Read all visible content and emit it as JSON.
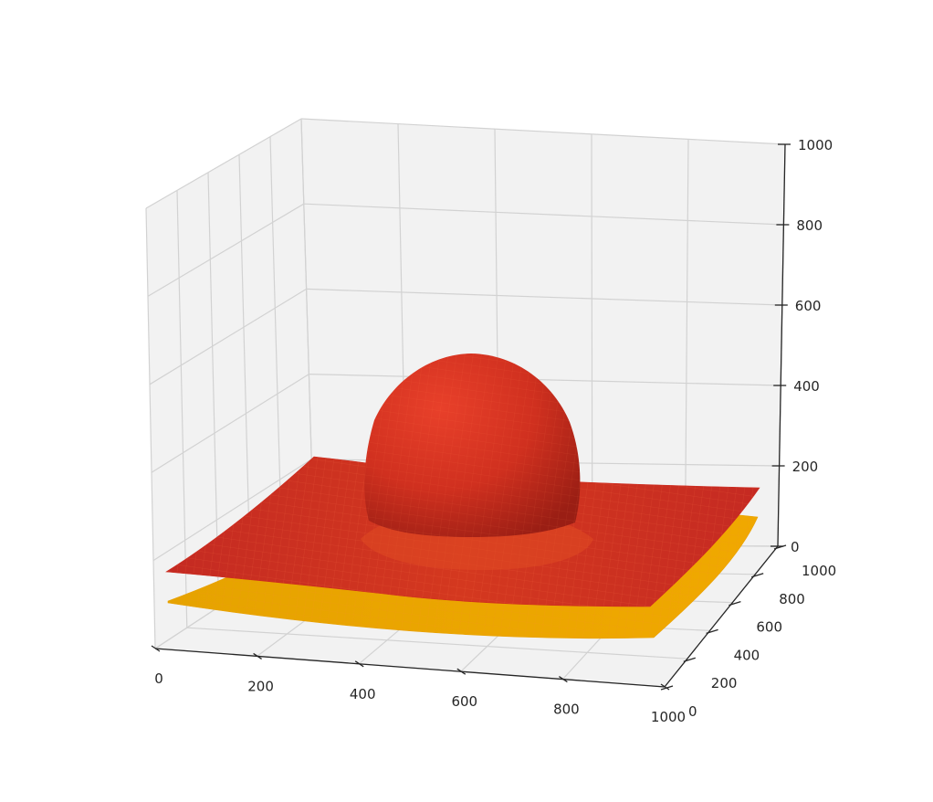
{
  "chart_data": {
    "type": "surface3d",
    "title": "",
    "xlabel": "",
    "ylabel": "",
    "zlabel": "",
    "xlim": [
      0,
      1000
    ],
    "ylim": [
      0,
      1000
    ],
    "zlim": [
      0,
      1000
    ],
    "grid": true,
    "x_ticks": [
      "0",
      "200",
      "400",
      "600",
      "800",
      "1000"
    ],
    "y_ticks": [
      "0",
      "200",
      "400",
      "600",
      "800",
      "1000"
    ],
    "z_ticks": [
      "0",
      "200",
      "400",
      "600",
      "800",
      "1000"
    ],
    "series": [
      {
        "color": "#e8a000",
        "kind": "lower-sheet",
        "base_z": -120
      },
      {
        "color": "#cc2a1e",
        "kind": "upper-sheet",
        "base_z": 0
      },
      {
        "color": "#d7301f",
        "kind": "dome",
        "center": [
          500,
          500
        ],
        "radius": 270,
        "peak_z": 500
      }
    ],
    "colors": {
      "pane": "#f2f2f2",
      "grid": "#d2d2d2",
      "axis": "#262626",
      "red": "#cc2a1e",
      "orange": "#e8a000"
    }
  }
}
